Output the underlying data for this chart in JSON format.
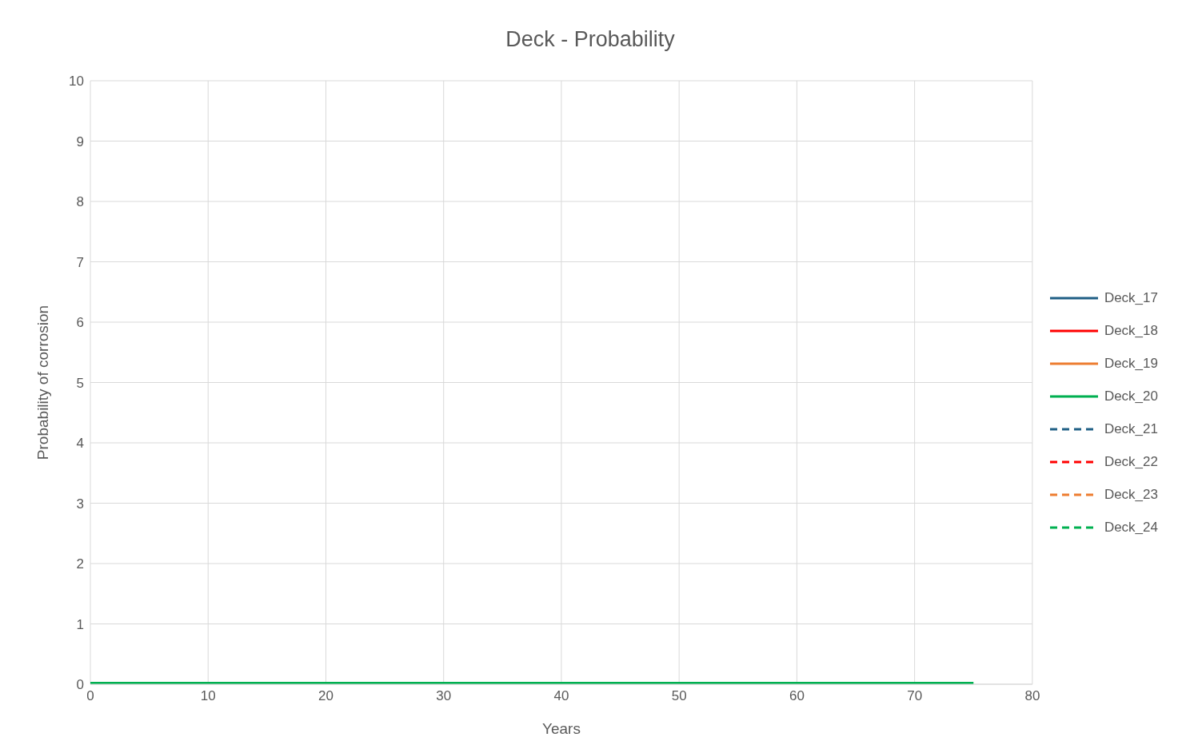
{
  "chart_data": {
    "type": "line",
    "title": "Deck - Probability",
    "xlabel": "Years",
    "ylabel": "Probability of corrosion",
    "x": [
      0,
      75
    ],
    "xlim": [
      0,
      80
    ],
    "xticks": [
      0,
      10,
      20,
      30,
      40,
      50,
      60,
      70,
      80
    ],
    "ylim": [
      0,
      10
    ],
    "yticks": [
      0,
      1,
      2,
      3,
      4,
      5,
      6,
      7,
      8,
      9,
      10
    ],
    "grid": true,
    "legend": "right",
    "marker": "none",
    "series": [
      {
        "name": "Deck_17",
        "color": "#1f5f85",
        "line_style": "solid",
        "values": [
          null,
          null
        ]
      },
      {
        "name": "Deck_18",
        "color": "#ff0000",
        "line_style": "solid",
        "values": [
          null,
          null
        ]
      },
      {
        "name": "Deck_19",
        "color": "#ed7d31",
        "line_style": "solid",
        "values": [
          null,
          null
        ]
      },
      {
        "name": "Deck_20",
        "color": "#00b050",
        "line_style": "solid",
        "values": [
          0,
          0
        ]
      },
      {
        "name": "Deck_21",
        "color": "#1f5f85",
        "line_style": "dashed",
        "values": [
          null,
          null
        ]
      },
      {
        "name": "Deck_22",
        "color": "#ff0000",
        "line_style": "dashed",
        "values": [
          null,
          null
        ]
      },
      {
        "name": "Deck_23",
        "color": "#ed7d31",
        "line_style": "dashed",
        "values": [
          null,
          null
        ]
      },
      {
        "name": "Deck_24",
        "color": "#00b050",
        "line_style": "dashed",
        "values": [
          null,
          null
        ]
      }
    ]
  }
}
